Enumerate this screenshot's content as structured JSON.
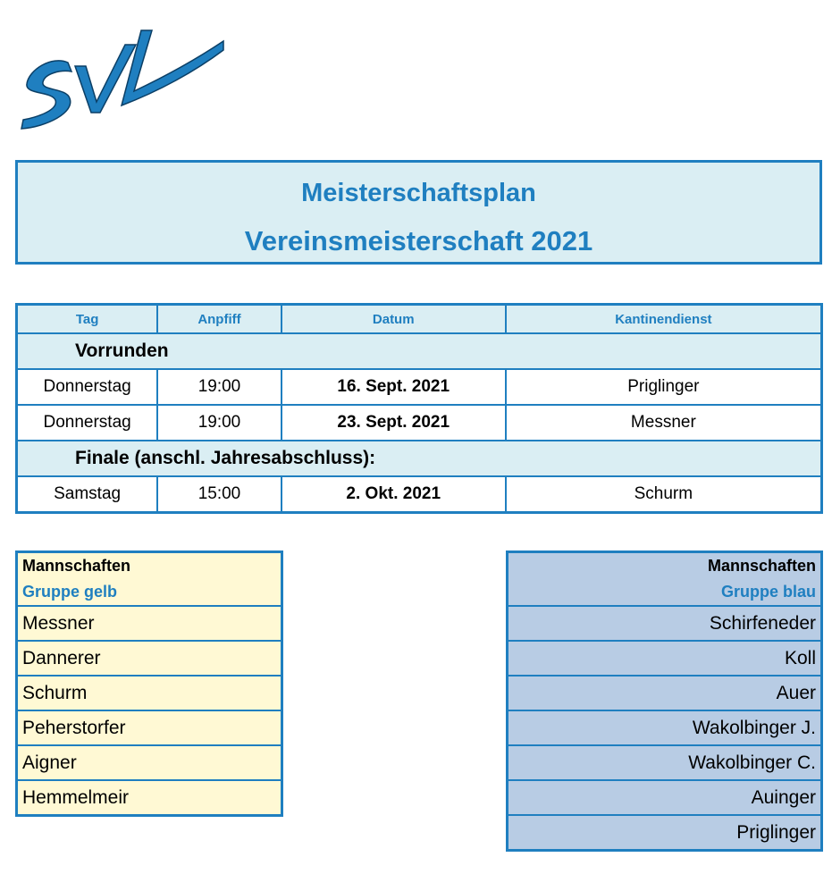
{
  "logo": {
    "text": "SVL",
    "color": "#1f7fc0"
  },
  "title": {
    "line1": "Meisterschaftsplan",
    "line2": "Vereinsmeisterschaft 2021"
  },
  "schedule": {
    "headers": [
      "Tag",
      "Anpfiff",
      "Datum",
      "Kantinendienst"
    ],
    "section_vorrunden": "Vorrunden",
    "vorrunden": [
      {
        "tag": "Donnerstag",
        "anpfiff": "19:00",
        "datum": "16. Sept. 2021",
        "kantinendienst": "Priglinger"
      },
      {
        "tag": "Donnerstag",
        "anpfiff": "19:00",
        "datum": "23. Sept. 2021",
        "kantinendienst": "Messner"
      }
    ],
    "section_finale": "Finale (anschl. Jahresabschluss):",
    "finale": [
      {
        "tag": "Samstag",
        "anpfiff": "15:00",
        "datum": "2. Okt. 2021",
        "kantinendienst": "Schurm"
      }
    ]
  },
  "gruppe_gelb": {
    "heading": "Mannschaften",
    "sub": "Gruppe gelb",
    "teams": [
      "Messner",
      "Dannerer",
      "Schurm",
      "Peherstorfer",
      "Aigner",
      "Hemmelmeir"
    ]
  },
  "gruppe_blau": {
    "heading": "Mannschaften",
    "sub": "Gruppe blau",
    "teams": [
      "Schirfeneder",
      "Koll",
      "Auer",
      "Wakolbinger J.",
      "Wakolbinger C.",
      "Auinger",
      "Priglinger"
    ]
  }
}
